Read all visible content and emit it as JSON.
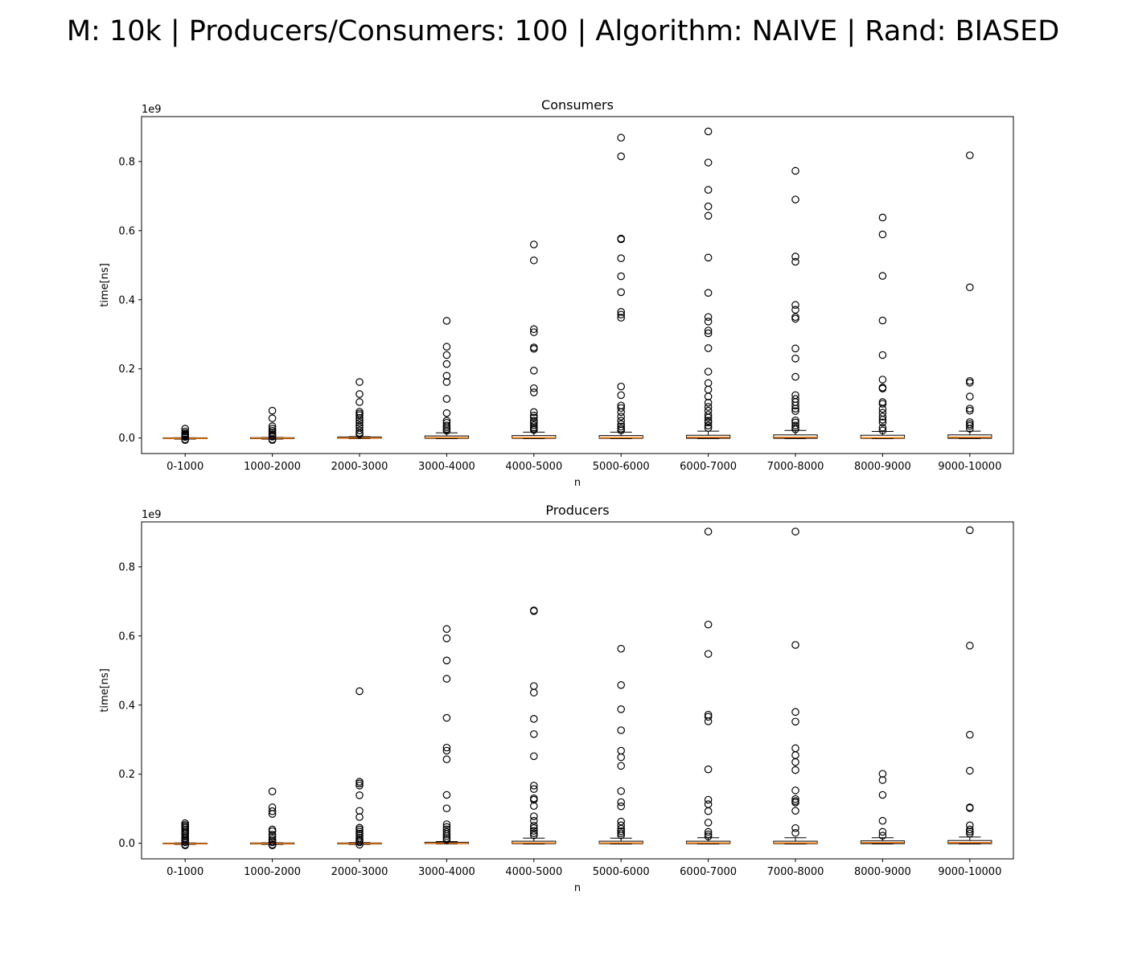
{
  "suptitle": "M: 10k | Producers/Consumers: 100 | Algorithm: NAIVE | Rand: BIASED",
  "chart_data": [
    {
      "type": "box",
      "title": "Consumers",
      "xlabel": "n",
      "ylabel": "time[ns]",
      "y_offset_label": "1e9",
      "y_scale": 1000000000,
      "ylim": [
        -0.045,
        0.93
      ],
      "yticks": [
        0.0,
        0.2,
        0.4,
        0.6,
        0.8
      ],
      "ytick_labels": [
        "0.0",
        "0.2",
        "0.4",
        "0.6",
        "0.8"
      ],
      "categories": [
        "0-1000",
        "1000-2000",
        "2000-3000",
        "3000-4000",
        "4000-5000",
        "5000-6000",
        "6000-7000",
        "7000-8000",
        "8000-9000",
        "9000-10000"
      ],
      "box_color": "#000000",
      "median_color": "#ff7f0e",
      "boxes": [
        {
          "q1": -0.002,
          "median": -0.001,
          "q3": 0.0005,
          "whisker_low": -0.003,
          "whisker_high": 0.0008,
          "outliers": [
            0.027,
            0.019,
            0.014,
            0.011,
            0.009,
            0.007,
            0.005,
            0.003,
            -0.004,
            -0.006
          ]
        },
        {
          "q1": -0.002,
          "median": -0.0005,
          "q3": 0.001,
          "whisker_low": -0.003,
          "whisker_high": 0.0015,
          "outliers": [
            0.079,
            0.057,
            0.034,
            0.027,
            0.021,
            0.016,
            0.011,
            0.007,
            0.004,
            -0.004,
            -0.006
          ]
        },
        {
          "q1": -0.001,
          "median": 0.0,
          "q3": 0.003,
          "whisker_low": -0.002,
          "whisker_high": 0.004,
          "outliers": [
            0.162,
            0.127,
            0.104,
            0.076,
            0.071,
            0.066,
            0.058,
            0.051,
            0.044,
            0.036,
            0.03,
            0.022,
            0.015,
            0.01
          ]
        },
        {
          "q1": -0.001,
          "median": 0.001,
          "q3": 0.006,
          "whisker_low": -0.002,
          "whisker_high": 0.015,
          "outliers": [
            0.339,
            0.264,
            0.24,
            0.214,
            0.18,
            0.162,
            0.113,
            0.072,
            0.05,
            0.044,
            0.036,
            0.031,
            0.026,
            0.021
          ]
        },
        {
          "q1": -0.001,
          "median": 0.001,
          "q3": 0.007,
          "whisker_low": -0.002,
          "whisker_high": 0.017,
          "outliers": [
            0.56,
            0.514,
            0.315,
            0.306,
            0.262,
            0.258,
            0.195,
            0.144,
            0.132,
            0.075,
            0.065,
            0.059,
            0.05,
            0.044,
            0.037,
            0.031,
            0.027,
            0.023
          ]
        },
        {
          "q1": -0.001,
          "median": 0.001,
          "q3": 0.007,
          "whisker_low": -0.002,
          "whisker_high": 0.017,
          "outliers": [
            0.869,
            0.815,
            0.577,
            0.575,
            0.52,
            0.468,
            0.422,
            0.365,
            0.357,
            0.348,
            0.149,
            0.124,
            0.094,
            0.087,
            0.075,
            0.062,
            0.05,
            0.04,
            0.033,
            0.027,
            0.022
          ]
        },
        {
          "q1": -0.001,
          "median": 0.002,
          "q3": 0.008,
          "whisker_low": -0.002,
          "whisker_high": 0.02,
          "outliers": [
            0.887,
            0.797,
            0.718,
            0.67,
            0.643,
            0.522,
            0.42,
            0.35,
            0.337,
            0.311,
            0.303,
            0.26,
            0.192,
            0.159,
            0.14,
            0.12,
            0.102,
            0.09,
            0.079,
            0.067,
            0.059,
            0.05,
            0.045,
            0.036,
            0.029
          ]
        },
        {
          "q1": -0.001,
          "median": 0.002,
          "q3": 0.009,
          "whisker_low": -0.002,
          "whisker_high": 0.022,
          "outliers": [
            0.773,
            0.69,
            0.525,
            0.51,
            0.385,
            0.371,
            0.35,
            0.345,
            0.259,
            0.23,
            0.177,
            0.124,
            0.113,
            0.104,
            0.094,
            0.085,
            0.078,
            0.051,
            0.045,
            0.036,
            0.03,
            0.025
          ]
        },
        {
          "q1": -0.001,
          "median": 0.001,
          "q3": 0.008,
          "whisker_low": -0.002,
          "whisker_high": 0.019,
          "outliers": [
            0.638,
            0.589,
            0.469,
            0.34,
            0.24,
            0.169,
            0.146,
            0.143,
            0.104,
            0.099,
            0.084,
            0.073,
            0.062,
            0.053,
            0.045,
            0.03,
            0.022
          ]
        },
        {
          "q1": -0.001,
          "median": 0.002,
          "q3": 0.009,
          "whisker_low": -0.002,
          "whisker_high": 0.02,
          "outliers": [
            0.818,
            0.436,
            0.165,
            0.16,
            0.12,
            0.085,
            0.079,
            0.046,
            0.04,
            0.035,
            0.027
          ]
        }
      ]
    },
    {
      "type": "box",
      "title": "Producers",
      "xlabel": "n",
      "ylabel": "time[ns]",
      "y_offset_label": "1e9",
      "y_scale": 1000000000,
      "ylim": [
        -0.045,
        0.93
      ],
      "yticks": [
        0.0,
        0.2,
        0.4,
        0.6,
        0.8
      ],
      "ytick_labels": [
        "0.0",
        "0.2",
        "0.4",
        "0.6",
        "0.8"
      ],
      "categories": [
        "0-1000",
        "1000-2000",
        "2000-3000",
        "3000-4000",
        "4000-5000",
        "5000-6000",
        "6000-7000",
        "7000-8000",
        "8000-9000",
        "9000-10000"
      ],
      "box_color": "#000000",
      "median_color": "#ff7f0e",
      "boxes": [
        {
          "q1": -0.002,
          "median": -0.001,
          "q3": 0.0005,
          "whisker_low": -0.003,
          "whisker_high": 0.001,
          "outliers": [
            0.058,
            0.053,
            0.049,
            0.045,
            0.04,
            0.035,
            0.03,
            0.026,
            0.02,
            0.015,
            0.01,
            0.006,
            0.003,
            -0.004,
            -0.006
          ]
        },
        {
          "q1": -0.002,
          "median": -0.0005,
          "q3": 0.001,
          "whisker_low": -0.003,
          "whisker_high": 0.0015,
          "outliers": [
            0.15,
            0.104,
            0.093,
            0.085,
            0.04,
            0.035,
            0.025,
            0.018,
            0.012,
            0.007,
            0.003,
            -0.004,
            -0.006
          ]
        },
        {
          "q1": -0.002,
          "median": -0.0005,
          "q3": 0.001,
          "whisker_low": -0.003,
          "whisker_high": 0.002,
          "outliers": [
            0.44,
            0.178,
            0.173,
            0.167,
            0.139,
            0.094,
            0.076,
            0.045,
            0.04,
            0.034,
            0.028,
            0.022,
            0.016,
            0.011,
            0.007,
            0.003,
            -0.004
          ]
        },
        {
          "q1": -0.001,
          "median": 0.0,
          "q3": 0.003,
          "whisker_low": -0.002,
          "whisker_high": 0.005,
          "outliers": [
            0.62,
            0.593,
            0.529,
            0.476,
            0.363,
            0.277,
            0.268,
            0.243,
            0.14,
            0.101,
            0.055,
            0.047,
            0.04,
            0.033,
            0.027,
            0.021,
            0.015,
            0.01
          ]
        },
        {
          "q1": -0.001,
          "median": 0.001,
          "q3": 0.006,
          "whisker_low": -0.002,
          "whisker_high": 0.015,
          "outliers": [
            0.674,
            0.672,
            0.455,
            0.436,
            0.36,
            0.316,
            0.252,
            0.167,
            0.157,
            0.13,
            0.126,
            0.108,
            0.078,
            0.065,
            0.051,
            0.044,
            0.036,
            0.029,
            0.023
          ]
        },
        {
          "q1": -0.001,
          "median": 0.001,
          "q3": 0.006,
          "whisker_low": -0.002,
          "whisker_high": 0.015,
          "outliers": [
            0.563,
            0.458,
            0.388,
            0.327,
            0.268,
            0.249,
            0.224,
            0.151,
            0.119,
            0.107,
            0.063,
            0.052,
            0.042,
            0.035,
            0.029,
            0.023
          ]
        },
        {
          "q1": -0.001,
          "median": 0.001,
          "q3": 0.006,
          "whisker_low": -0.002,
          "whisker_high": 0.016,
          "outliers": [
            0.902,
            0.633,
            0.548,
            0.372,
            0.366,
            0.353,
            0.214,
            0.126,
            0.113,
            0.093,
            0.06,
            0.033,
            0.026,
            0.02
          ]
        },
        {
          "q1": -0.001,
          "median": 0.001,
          "q3": 0.006,
          "whisker_low": -0.002,
          "whisker_high": 0.016,
          "outliers": [
            0.902,
            0.574,
            0.38,
            0.352,
            0.275,
            0.255,
            0.235,
            0.212,
            0.153,
            0.128,
            0.122,
            0.118,
            0.094,
            0.044,
            0.03
          ]
        },
        {
          "q1": -0.001,
          "median": 0.002,
          "q3": 0.007,
          "whisker_low": -0.002,
          "whisker_high": 0.016,
          "outliers": [
            0.201,
            0.183,
            0.14,
            0.065,
            0.033,
            0.022
          ]
        },
        {
          "q1": -0.001,
          "median": 0.002,
          "q3": 0.008,
          "whisker_low": -0.002,
          "whisker_high": 0.018,
          "outliers": [
            0.906,
            0.572,
            0.314,
            0.21,
            0.104,
            0.102,
            0.052,
            0.04,
            0.034,
            0.028
          ]
        }
      ]
    }
  ]
}
